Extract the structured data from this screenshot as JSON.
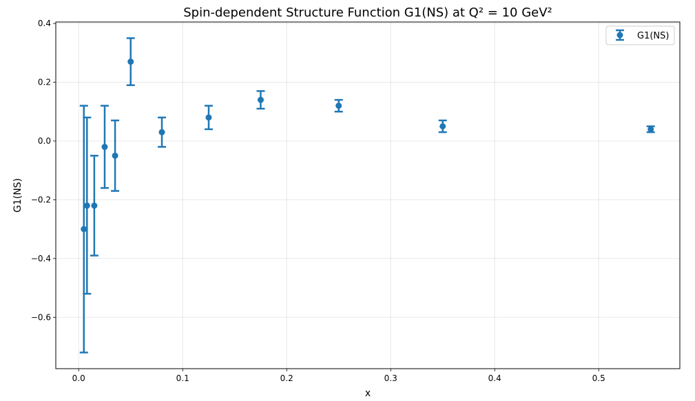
{
  "chart_data": {
    "type": "scatter",
    "title": "Spin-dependent Structure Function G1(NS) at Q² = 10 GeV²",
    "xlabel": "x",
    "ylabel": "G1(NS)",
    "xlim": [
      -0.022,
      0.578
    ],
    "ylim": [
      -0.775,
      0.405
    ],
    "xticks": [
      0.0,
      0.1,
      0.2,
      0.3,
      0.4,
      0.5
    ],
    "xtick_labels": [
      "0.0",
      "0.1",
      "0.2",
      "0.3",
      "0.4",
      "0.5"
    ],
    "yticks": [
      -0.6,
      -0.4,
      -0.2,
      0.0,
      0.2,
      0.4
    ],
    "ytick_labels": [
      "−0.6",
      "−0.4",
      "−0.2",
      "0.0",
      "0.2",
      "0.4"
    ],
    "grid": true,
    "legend_position": "top-right",
    "series": [
      {
        "name": "G1(NS)",
        "color": "#1f77b4",
        "marker": "circle",
        "error_bars": true,
        "points": [
          {
            "x": 0.005,
            "y": -0.3,
            "err": 0.42
          },
          {
            "x": 0.008,
            "y": -0.22,
            "err": 0.3
          },
          {
            "x": 0.015,
            "y": -0.22,
            "err": 0.17
          },
          {
            "x": 0.025,
            "y": -0.02,
            "err": 0.14
          },
          {
            "x": 0.035,
            "y": -0.05,
            "err": 0.12
          },
          {
            "x": 0.05,
            "y": 0.27,
            "err": 0.08
          },
          {
            "x": 0.08,
            "y": 0.03,
            "err": 0.05
          },
          {
            "x": 0.125,
            "y": 0.08,
            "err": 0.04
          },
          {
            "x": 0.175,
            "y": 0.14,
            "err": 0.03
          },
          {
            "x": 0.25,
            "y": 0.12,
            "err": 0.02
          },
          {
            "x": 0.35,
            "y": 0.05,
            "err": 0.02
          },
          {
            "x": 0.55,
            "y": 0.04,
            "err": 0.01
          }
        ]
      }
    ]
  }
}
